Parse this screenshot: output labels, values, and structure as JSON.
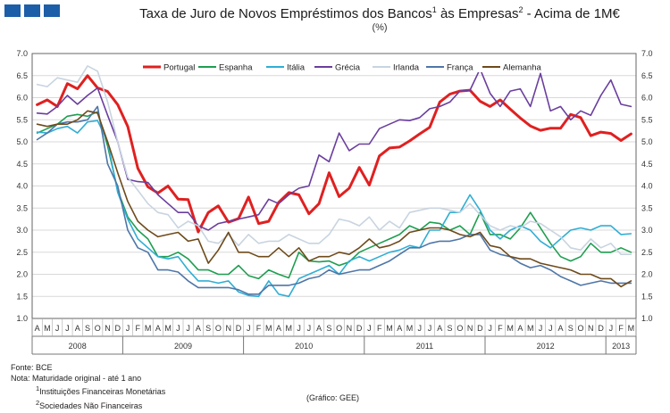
{
  "chart_data": {
    "type": "line",
    "title": "Taxa de Juro de Novos Empréstimos dos Bancos",
    "title_sup1": "1",
    "title_middle": " às Empresas",
    "title_sup2": "2",
    "title_end": " - Acima de 1M€",
    "subtitle": "(%)",
    "ylim": [
      1.0,
      7.0
    ],
    "yticks": [
      "7.0",
      "6.5",
      "6.0",
      "5.5",
      "5.0",
      "4.5",
      "4.0",
      "3.5",
      "3.0",
      "2.5",
      "2.0",
      "1.5",
      "1.0"
    ],
    "month_labels": [
      "A",
      "M",
      "J",
      "J",
      "A",
      "S",
      "O",
      "N",
      "D",
      "J",
      "F",
      "M",
      "A",
      "M",
      "J",
      "J",
      "A",
      "S",
      "O",
      "N",
      "D",
      "J",
      "F",
      "M",
      "A",
      "M",
      "J",
      "J",
      "A",
      "S",
      "O",
      "N",
      "D",
      "J",
      "F",
      "M",
      "A",
      "M",
      "J",
      "J",
      "A",
      "S",
      "O",
      "N",
      "D",
      "J",
      "F",
      "M",
      "A",
      "M",
      "J",
      "J",
      "A",
      "S",
      "O",
      "N",
      "D",
      "J",
      "F",
      "M"
    ],
    "year_labels": [
      "2008",
      "2009",
      "2010",
      "2011",
      "2012",
      "2013"
    ],
    "x_months": [
      "2008-04",
      "2008-05",
      "2008-06",
      "2008-07",
      "2008-08",
      "2008-09",
      "2008-10",
      "2008-11",
      "2008-12",
      "2009-01",
      "2009-02",
      "2009-03",
      "2009-04",
      "2009-05",
      "2009-06",
      "2009-07",
      "2009-08",
      "2009-09",
      "2009-10",
      "2009-11",
      "2009-12",
      "2010-01",
      "2010-02",
      "2010-03",
      "2010-04",
      "2010-05",
      "2010-06",
      "2010-07",
      "2010-08",
      "2010-09",
      "2010-10",
      "2010-11",
      "2010-12",
      "2011-01",
      "2011-02",
      "2011-03",
      "2011-04",
      "2011-05",
      "2011-06",
      "2011-07",
      "2011-08",
      "2011-09",
      "2011-10",
      "2011-11",
      "2011-12",
      "2012-01",
      "2012-02",
      "2012-03",
      "2012-04",
      "2012-05",
      "2012-06",
      "2012-07",
      "2012-08",
      "2012-09",
      "2012-10",
      "2012-11",
      "2012-12",
      "2013-01",
      "2013-02",
      "2013-03"
    ],
    "series": [
      {
        "name": "Portugal",
        "color": "#e02020",
        "width": 3,
        "values": [
          5.84,
          5.95,
          5.8,
          6.32,
          6.2,
          6.5,
          6.22,
          6.14,
          5.84,
          5.35,
          4.4,
          3.98,
          3.84,
          4.0,
          3.7,
          3.69,
          2.96,
          3.4,
          3.55,
          3.18,
          3.26,
          3.75,
          3.15,
          3.2,
          3.63,
          3.85,
          3.8,
          3.37,
          3.6,
          4.3,
          3.76,
          3.95,
          4.42,
          4.02,
          4.68,
          4.86,
          4.88,
          5.02,
          5.18,
          5.33,
          5.9,
          6.08,
          6.15,
          6.17,
          5.92,
          5.8,
          5.95,
          5.74,
          5.54,
          5.36,
          5.26,
          5.31,
          5.31,
          5.62,
          5.55,
          5.14,
          5.22,
          5.19,
          5.03,
          5.18
        ]
      },
      {
        "name": "Espanha",
        "color": "#1e9e50",
        "width": 1.6,
        "values": [
          5.2,
          5.3,
          5.4,
          5.58,
          5.62,
          5.58,
          5.68,
          4.9,
          3.9,
          3.3,
          3.0,
          2.8,
          2.4,
          2.4,
          2.5,
          2.35,
          2.1,
          2.1,
          2.0,
          2.0,
          2.2,
          1.97,
          1.9,
          2.1,
          2.0,
          1.92,
          2.5,
          2.3,
          2.28,
          2.3,
          2.2,
          2.28,
          2.5,
          2.6,
          2.7,
          2.8,
          2.9,
          3.1,
          3.0,
          3.18,
          3.15,
          3.0,
          3.1,
          2.9,
          3.4,
          2.9,
          2.9,
          2.8,
          3.05,
          3.4,
          3.05,
          2.7,
          2.4,
          2.3,
          2.4,
          2.7,
          2.5,
          2.5,
          2.6,
          2.5
        ]
      },
      {
        "name": "Itália",
        "color": "#30aed4",
        "width": 1.6,
        "values": [
          5.22,
          5.2,
          5.3,
          5.35,
          5.2,
          5.45,
          5.48,
          5.0,
          3.85,
          3.25,
          2.8,
          2.6,
          2.4,
          2.35,
          2.4,
          2.1,
          1.85,
          1.85,
          1.8,
          1.85,
          1.6,
          1.52,
          1.5,
          1.85,
          1.55,
          1.5,
          1.9,
          2.0,
          2.1,
          2.2,
          2.0,
          2.3,
          2.4,
          2.3,
          2.4,
          2.5,
          2.55,
          2.65,
          2.6,
          3.0,
          3.0,
          3.4,
          3.4,
          3.8,
          3.45,
          3.0,
          2.8,
          3.0,
          3.1,
          3.0,
          2.75,
          2.6,
          2.8,
          3.0,
          3.05,
          3.0,
          3.1,
          3.1,
          2.9,
          2.92
        ]
      },
      {
        "name": "Grécia",
        "color": "#6a3e9e",
        "width": 1.6,
        "values": [
          5.65,
          5.63,
          5.8,
          6.05,
          5.85,
          6.05,
          6.22,
          5.6,
          5.0,
          4.15,
          4.1,
          4.08,
          3.8,
          3.6,
          3.4,
          3.4,
          3.1,
          3.0,
          3.15,
          3.2,
          3.25,
          3.3,
          3.35,
          3.7,
          3.6,
          3.8,
          3.95,
          4.0,
          4.7,
          4.55,
          5.2,
          4.8,
          4.95,
          4.95,
          5.3,
          5.4,
          5.5,
          5.48,
          5.55,
          5.75,
          5.8,
          5.9,
          6.15,
          6.17,
          6.65,
          6.1,
          5.8,
          6.15,
          6.2,
          5.8,
          6.55,
          5.7,
          5.8,
          5.5,
          5.7,
          5.6,
          6.05,
          6.4,
          5.85,
          5.8
        ]
      },
      {
        "name": "Irlanda",
        "color": "#c8d4e0",
        "width": 1.6,
        "values": [
          6.3,
          6.25,
          6.45,
          6.4,
          6.35,
          6.72,
          6.6,
          5.9,
          5.0,
          4.2,
          3.9,
          3.6,
          3.4,
          3.35,
          3.05,
          3.2,
          3.1,
          2.75,
          2.7,
          2.9,
          2.65,
          2.9,
          2.7,
          2.75,
          2.75,
          2.9,
          2.8,
          2.7,
          2.7,
          2.9,
          3.25,
          3.2,
          3.1,
          3.3,
          3.0,
          3.2,
          3.05,
          3.4,
          3.45,
          3.5,
          3.5,
          3.45,
          3.4,
          3.6,
          3.35,
          3.1,
          3.0,
          3.1,
          3.05,
          3.2,
          3.15,
          3.0,
          2.85,
          2.6,
          2.55,
          2.8,
          2.6,
          2.7,
          2.45,
          2.45
        ]
      },
      {
        "name": "França",
        "color": "#4e76a8",
        "width": 1.6,
        "values": [
          5.05,
          5.2,
          5.4,
          5.45,
          5.45,
          5.5,
          5.8,
          4.5,
          4.0,
          3.0,
          2.6,
          2.5,
          2.1,
          2.1,
          2.05,
          1.85,
          1.7,
          1.7,
          1.7,
          1.7,
          1.65,
          1.55,
          1.55,
          1.75,
          1.75,
          1.75,
          1.8,
          1.9,
          1.95,
          2.1,
          2.0,
          2.05,
          2.1,
          2.1,
          2.2,
          2.3,
          2.45,
          2.6,
          2.6,
          2.7,
          2.75,
          2.75,
          2.8,
          2.9,
          2.9,
          2.55,
          2.45,
          2.4,
          2.25,
          2.15,
          2.2,
          2.1,
          1.95,
          1.85,
          1.75,
          1.8,
          1.85,
          1.8,
          1.8,
          1.8
        ]
      },
      {
        "name": "Alemanha",
        "color": "#6e4a1a",
        "width": 1.6,
        "values": [
          5.4,
          5.35,
          5.4,
          5.4,
          5.5,
          5.7,
          5.65,
          5.0,
          4.3,
          3.65,
          3.2,
          3.0,
          2.85,
          2.9,
          2.95,
          2.75,
          2.8,
          2.25,
          2.55,
          2.95,
          2.5,
          2.5,
          2.4,
          2.4,
          2.6,
          2.4,
          2.6,
          2.3,
          2.4,
          2.4,
          2.5,
          2.45,
          2.6,
          2.8,
          2.6,
          2.65,
          2.75,
          2.95,
          3.0,
          3.05,
          3.05,
          3.0,
          2.9,
          2.85,
          2.95,
          2.65,
          2.6,
          2.4,
          2.35,
          2.35,
          2.25,
          2.2,
          2.15,
          2.1,
          2.0,
          2.0,
          1.9,
          1.9,
          1.72,
          1.85
        ]
      }
    ]
  },
  "notes": {
    "source": "Fonte: BCE",
    "note": "Nota: Maturidade original - até 1 ano",
    "fn1_num": "1",
    "fn1": "Instituições Financeiras Monetárias",
    "fn2_num": "2",
    "fn2": "Sociedades Não Financeiras"
  },
  "credit": "(Gráfico: GEE)",
  "colors": {
    "logo": "#1c5ea8"
  }
}
